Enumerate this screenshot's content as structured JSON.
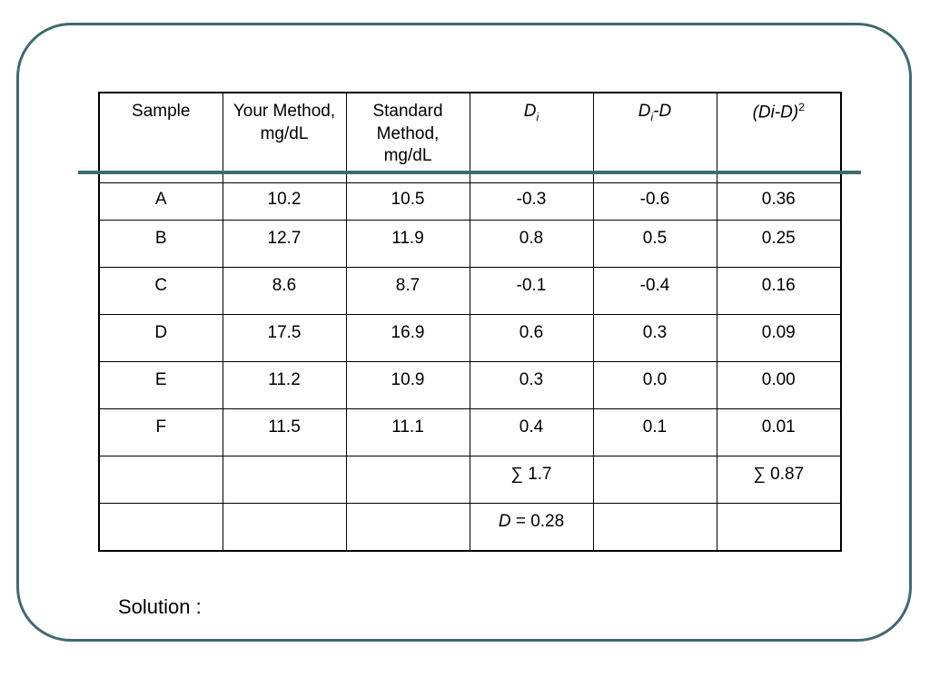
{
  "table": {
    "headers": {
      "sample": "Sample",
      "your_method": "Your Method,",
      "your_method_unit": "mg/dL",
      "standard_method": "Standard Method,",
      "standard_method_unit": "mg/dL",
      "di_base": "D",
      "di_sub": "i",
      "di_minus_d_base": "D",
      "di_minus_d_sub": "i",
      "di_minus_d_tail": "-D",
      "sq_base": "(Di-D)",
      "sq_sup": "2"
    },
    "rows": [
      [
        "A",
        "10.2",
        "10.5",
        "-0.3",
        "-0.6",
        "0.36"
      ],
      [
        "B",
        "12.7",
        "11.9",
        "0.8",
        "0.5",
        "0.25"
      ],
      [
        "C",
        "8.6",
        "8.7",
        "-0.1",
        "-0.4",
        "0.16"
      ],
      [
        "D",
        "17.5",
        "16.9",
        "0.6",
        "0.3",
        "0.09"
      ],
      [
        "E",
        "11.2",
        "10.9",
        "0.3",
        "0.0",
        "0.00"
      ],
      [
        "F",
        "11.5",
        "11.1",
        "0.4",
        "0.1",
        "0.01"
      ]
    ],
    "sum_row": {
      "di_sum": "∑ 1.7",
      "sq_sum": "∑ 0.87"
    },
    "mean_row": {
      "mean_symbol": "D",
      "mean_value": " = 0.28"
    }
  },
  "solution_label": "Solution :"
}
